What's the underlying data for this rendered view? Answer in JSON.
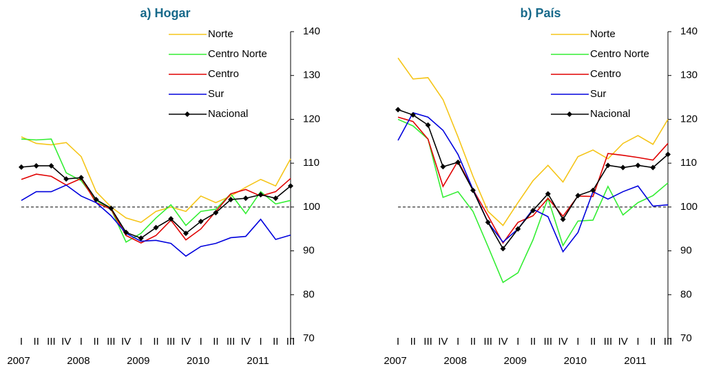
{
  "chart_data": [
    {
      "type": "line",
      "title": "a) Hogar",
      "categories": [
        "I",
        "II",
        "III",
        "IV",
        "I",
        "II",
        "III",
        "IV",
        "I",
        "II",
        "III",
        "IV",
        "I",
        "II",
        "III",
        "IV",
        "I",
        "II",
        "III"
      ],
      "years": [
        "2007",
        "2008",
        "2009",
        "2010",
        "2011"
      ],
      "ylim": [
        70,
        140
      ],
      "yticks": [
        70,
        80,
        90,
        100,
        110,
        120,
        130,
        140
      ],
      "reference_line": 100,
      "series": [
        {
          "name": "Norte",
          "color": "#f5c518",
          "values": [
            116,
            114.5,
            114.2,
            114.7,
            111.5,
            103.5,
            100,
            97.5,
            96.5,
            99,
            100,
            99,
            102.5,
            101,
            102.5,
            104.5,
            106.3,
            104.8,
            111
          ]
        },
        {
          "name": "Centro Norte",
          "color": "#33ee33",
          "values": [
            115.5,
            115.3,
            115.5,
            107.8,
            106,
            101.5,
            99.5,
            92,
            94,
            97.5,
            100.5,
            95.8,
            99,
            99.5,
            103,
            98.5,
            103.5,
            100.7,
            101.5
          ]
        },
        {
          "name": "Centro",
          "color": "#e00000",
          "values": [
            106.3,
            107.5,
            107,
            105,
            106.5,
            101,
            99.5,
            93.5,
            91.8,
            93.5,
            97,
            92.5,
            95,
            99,
            103,
            104,
            102.5,
            103.5,
            106.5
          ]
        },
        {
          "name": "Sur",
          "color": "#0000dd",
          "values": [
            101.5,
            103.5,
            103.5,
            105,
            102.5,
            101,
            98,
            94,
            92.2,
            92.4,
            91.7,
            88.8,
            91,
            91.7,
            93,
            93.3,
            97.2,
            92.6,
            93.6
          ]
        },
        {
          "name": "Nacional",
          "color": "#000000",
          "markers": true,
          "values": [
            109.1,
            109.4,
            109.4,
            106.4,
            106.7,
            101.7,
            99.7,
            94.2,
            92.9,
            95.3,
            97.3,
            94.0,
            96.7,
            98.7,
            101.7,
            102.0,
            102.8,
            102.0,
            104.8
          ]
        }
      ]
    },
    {
      "type": "line",
      "title": "b) País",
      "categories": [
        "I",
        "II",
        "III",
        "IV",
        "I",
        "II",
        "III",
        "IV",
        "I",
        "II",
        "III",
        "IV",
        "I",
        "II",
        "III",
        "IV",
        "I",
        "II",
        "III"
      ],
      "years": [
        "2007",
        "2008",
        "2009",
        "2010",
        "2011"
      ],
      "ylim": [
        70,
        140
      ],
      "yticks": [
        70,
        80,
        90,
        100,
        110,
        120,
        130,
        140
      ],
      "reference_line": 100,
      "series": [
        {
          "name": "Norte",
          "color": "#f5c518",
          "values": [
            134,
            129.2,
            129.5,
            124.5,
            116,
            107,
            99,
            95.8,
            101,
            106,
            109.5,
            105.7,
            111.5,
            113,
            111,
            114.5,
            116.3,
            114.3,
            120
          ]
        },
        {
          "name": "Centro Norte",
          "color": "#33ee33",
          "values": [
            120,
            118.5,
            115.5,
            102.2,
            103.5,
            99,
            91,
            82.8,
            85,
            92.5,
            102,
            91.2,
            96.8,
            97,
            104.7,
            98.2,
            101,
            102.6,
            105.5
          ]
        },
        {
          "name": "Centro",
          "color": "#e00000",
          "values": [
            120.5,
            119.5,
            115.5,
            104.7,
            110.5,
            104,
            98,
            91.8,
            96.5,
            98,
            102,
            97.9,
            102.5,
            102.4,
            112.2,
            111.8,
            111.3,
            110.7,
            114.5
          ]
        },
        {
          "name": "Sur",
          "color": "#0000dd",
          "values": [
            115.2,
            121.5,
            120.5,
            117.5,
            112,
            104,
            96.5,
            92,
            95,
            99.5,
            97.8,
            89.8,
            94.2,
            103.5,
            101.8,
            103.5,
            104.8,
            100.2,
            100.5
          ]
        },
        {
          "name": "Nacional",
          "color": "#000000",
          "markers": true,
          "values": [
            122.2,
            121,
            118.7,
            109.2,
            110.2,
            103.8,
            96.5,
            90.5,
            95,
            99.2,
            103,
            97.2,
            102.6,
            103.8,
            109.5,
            109,
            109.5,
            109,
            112
          ]
        }
      ]
    }
  ]
}
